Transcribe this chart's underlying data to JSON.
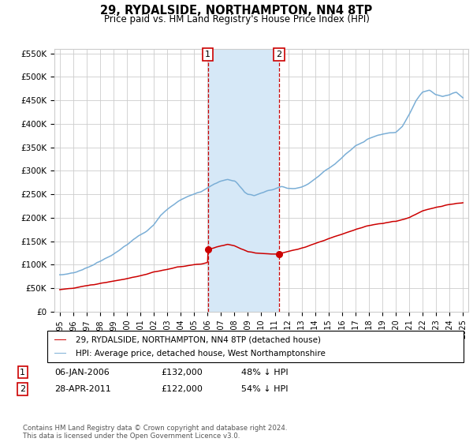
{
  "title": "29, RYDALSIDE, NORTHAMPTON, NN4 8TP",
  "subtitle": "Price paid vs. HM Land Registry's House Price Index (HPI)",
  "ylabel_ticks": [
    "£0",
    "£50K",
    "£100K",
    "£150K",
    "£200K",
    "£250K",
    "£300K",
    "£350K",
    "£400K",
    "£450K",
    "£500K",
    "£550K"
  ],
  "ytick_values": [
    0,
    50000,
    100000,
    150000,
    200000,
    250000,
    300000,
    350000,
    400000,
    450000,
    500000,
    550000
  ],
  "ylim": [
    0,
    560000
  ],
  "xlim_start": 1994.6,
  "xlim_end": 2025.4,
  "sale1_date": "06-JAN-2006",
  "sale1_price": 132000,
  "sale1_label": "48% ↓ HPI",
  "sale1_year": 2006.02,
  "sale2_date": "28-APR-2011",
  "sale2_price": 122000,
  "sale2_label": "54% ↓ HPI",
  "sale2_year": 2011.32,
  "legend_line1": "29, RYDALSIDE, NORTHAMPTON, NN4 8TP (detached house)",
  "legend_line2": "HPI: Average price, detached house, West Northamptonshire",
  "footnote": "Contains HM Land Registry data © Crown copyright and database right 2024.\nThis data is licensed under the Open Government Licence v3.0.",
  "line_red_color": "#cc0000",
  "line_blue_color": "#7aaed6",
  "shade_color": "#d6e8f7",
  "vline_color": "#cc0000",
  "grid_color": "#cccccc",
  "background_color": "#ffffff",
  "marker_box_color": "#cc0000"
}
